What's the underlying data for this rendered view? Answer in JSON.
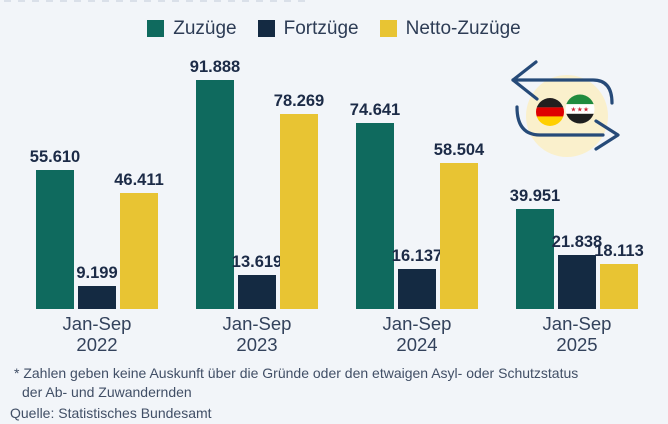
{
  "legend": {
    "items": [
      {
        "label": "Zuzüge",
        "color": "#0f6a5e"
      },
      {
        "label": "Fortzüge",
        "color": "#142a42"
      },
      {
        "label": "Netto-Zuzüge",
        "color": "#e8c433"
      }
    ]
  },
  "chart_data": {
    "type": "bar",
    "title": "",
    "categories": [
      {
        "period": "Jan-Sep",
        "year": "2022"
      },
      {
        "period": "Jan-Sep",
        "year": "2023"
      },
      {
        "period": "Jan-Sep",
        "year": "2024"
      },
      {
        "period": "Jan-Sep",
        "year": "2025"
      }
    ],
    "series": [
      {
        "name": "Zuzüge",
        "color": "#0f6a5e",
        "values": [
          55610,
          91888,
          74641,
          39951
        ],
        "labels": [
          "55.610",
          "91.888",
          "74.641",
          "39.951"
        ]
      },
      {
        "name": "Fortzüge",
        "color": "#142a42",
        "values": [
          9199,
          13619,
          16137,
          21838
        ],
        "labels": [
          "9.199",
          "13.619",
          "16.137",
          "21.838"
        ]
      },
      {
        "name": "Netto-Zuzüge",
        "color": "#e8c433",
        "values": [
          46411,
          78269,
          58504,
          18113
        ],
        "labels": [
          "46.411",
          "78.269",
          "58.504",
          "18.113"
        ]
      }
    ],
    "ylim": [
      0,
      91888
    ],
    "grid": false,
    "legend_position": "top",
    "value_labels": true
  },
  "icon": {
    "name": "germany-syria-migration-exchange",
    "colors": {
      "arrow": "#264a78",
      "circle_bg": "#faf0cc",
      "germany_flag": [
        "#221f1f",
        "#de0000",
        "#ffcf00"
      ],
      "syria_flag": [
        "#208b3e",
        "#ffffff",
        "#1e1e1e"
      ],
      "syria_stars": "#cf2233"
    }
  },
  "footnote": {
    "lines": [
      "* Zahlen geben keine Auskunft über die Gründe oder den etwaigen Asyl- oder Schutzstatus",
      "der Ab- und Zuwandernden"
    ],
    "source": "Quelle: Statistisches Bundesamt"
  },
  "background": "#f2f5f9"
}
